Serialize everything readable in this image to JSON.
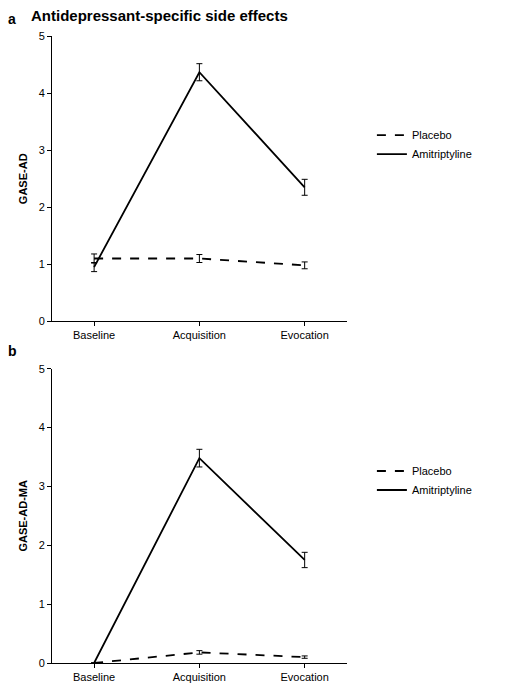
{
  "title": "Antidepressant-specific side effects",
  "chart_data": [
    {
      "type": "line",
      "panel_label": "a",
      "y_label": "GASE-AD",
      "categories": [
        "Baseline",
        "Acquisition",
        "Evocation"
      ],
      "series": [
        {
          "name": "Placebo",
          "color": "#000000",
          "line_style": "dashed",
          "values": [
            1.1,
            1.1,
            0.98
          ],
          "error": [
            0.08,
            0.07,
            0.06
          ]
        },
        {
          "name": "Amitriptyline",
          "color": "#000000",
          "line_style": "solid",
          "values": [
            0.95,
            4.37,
            2.35
          ],
          "error": [
            0.08,
            0.15,
            0.14
          ]
        }
      ],
      "ylim": [
        0,
        5
      ],
      "yticks": [
        0,
        1,
        2,
        3,
        4,
        5
      ],
      "grid": false,
      "legend": "right"
    },
    {
      "type": "line",
      "panel_label": "b",
      "y_label": "GASE-AD-MA",
      "categories": [
        "Baseline",
        "Acquisition",
        "Evocation"
      ],
      "series": [
        {
          "name": "Placebo",
          "color": "#000000",
          "line_style": "dashed",
          "values": [
            0,
            0.18,
            0.1
          ],
          "error": [
            0,
            0.03,
            0.02
          ]
        },
        {
          "name": "Amitriptyline",
          "color": "#000000",
          "line_style": "solid",
          "values": [
            0,
            3.48,
            1.75
          ],
          "error": [
            0,
            0.15,
            0.13
          ]
        }
      ],
      "ylim": [
        0,
        5
      ],
      "yticks": [
        0,
        1,
        2,
        3,
        4,
        5
      ],
      "grid": false,
      "legend": "right"
    }
  ]
}
